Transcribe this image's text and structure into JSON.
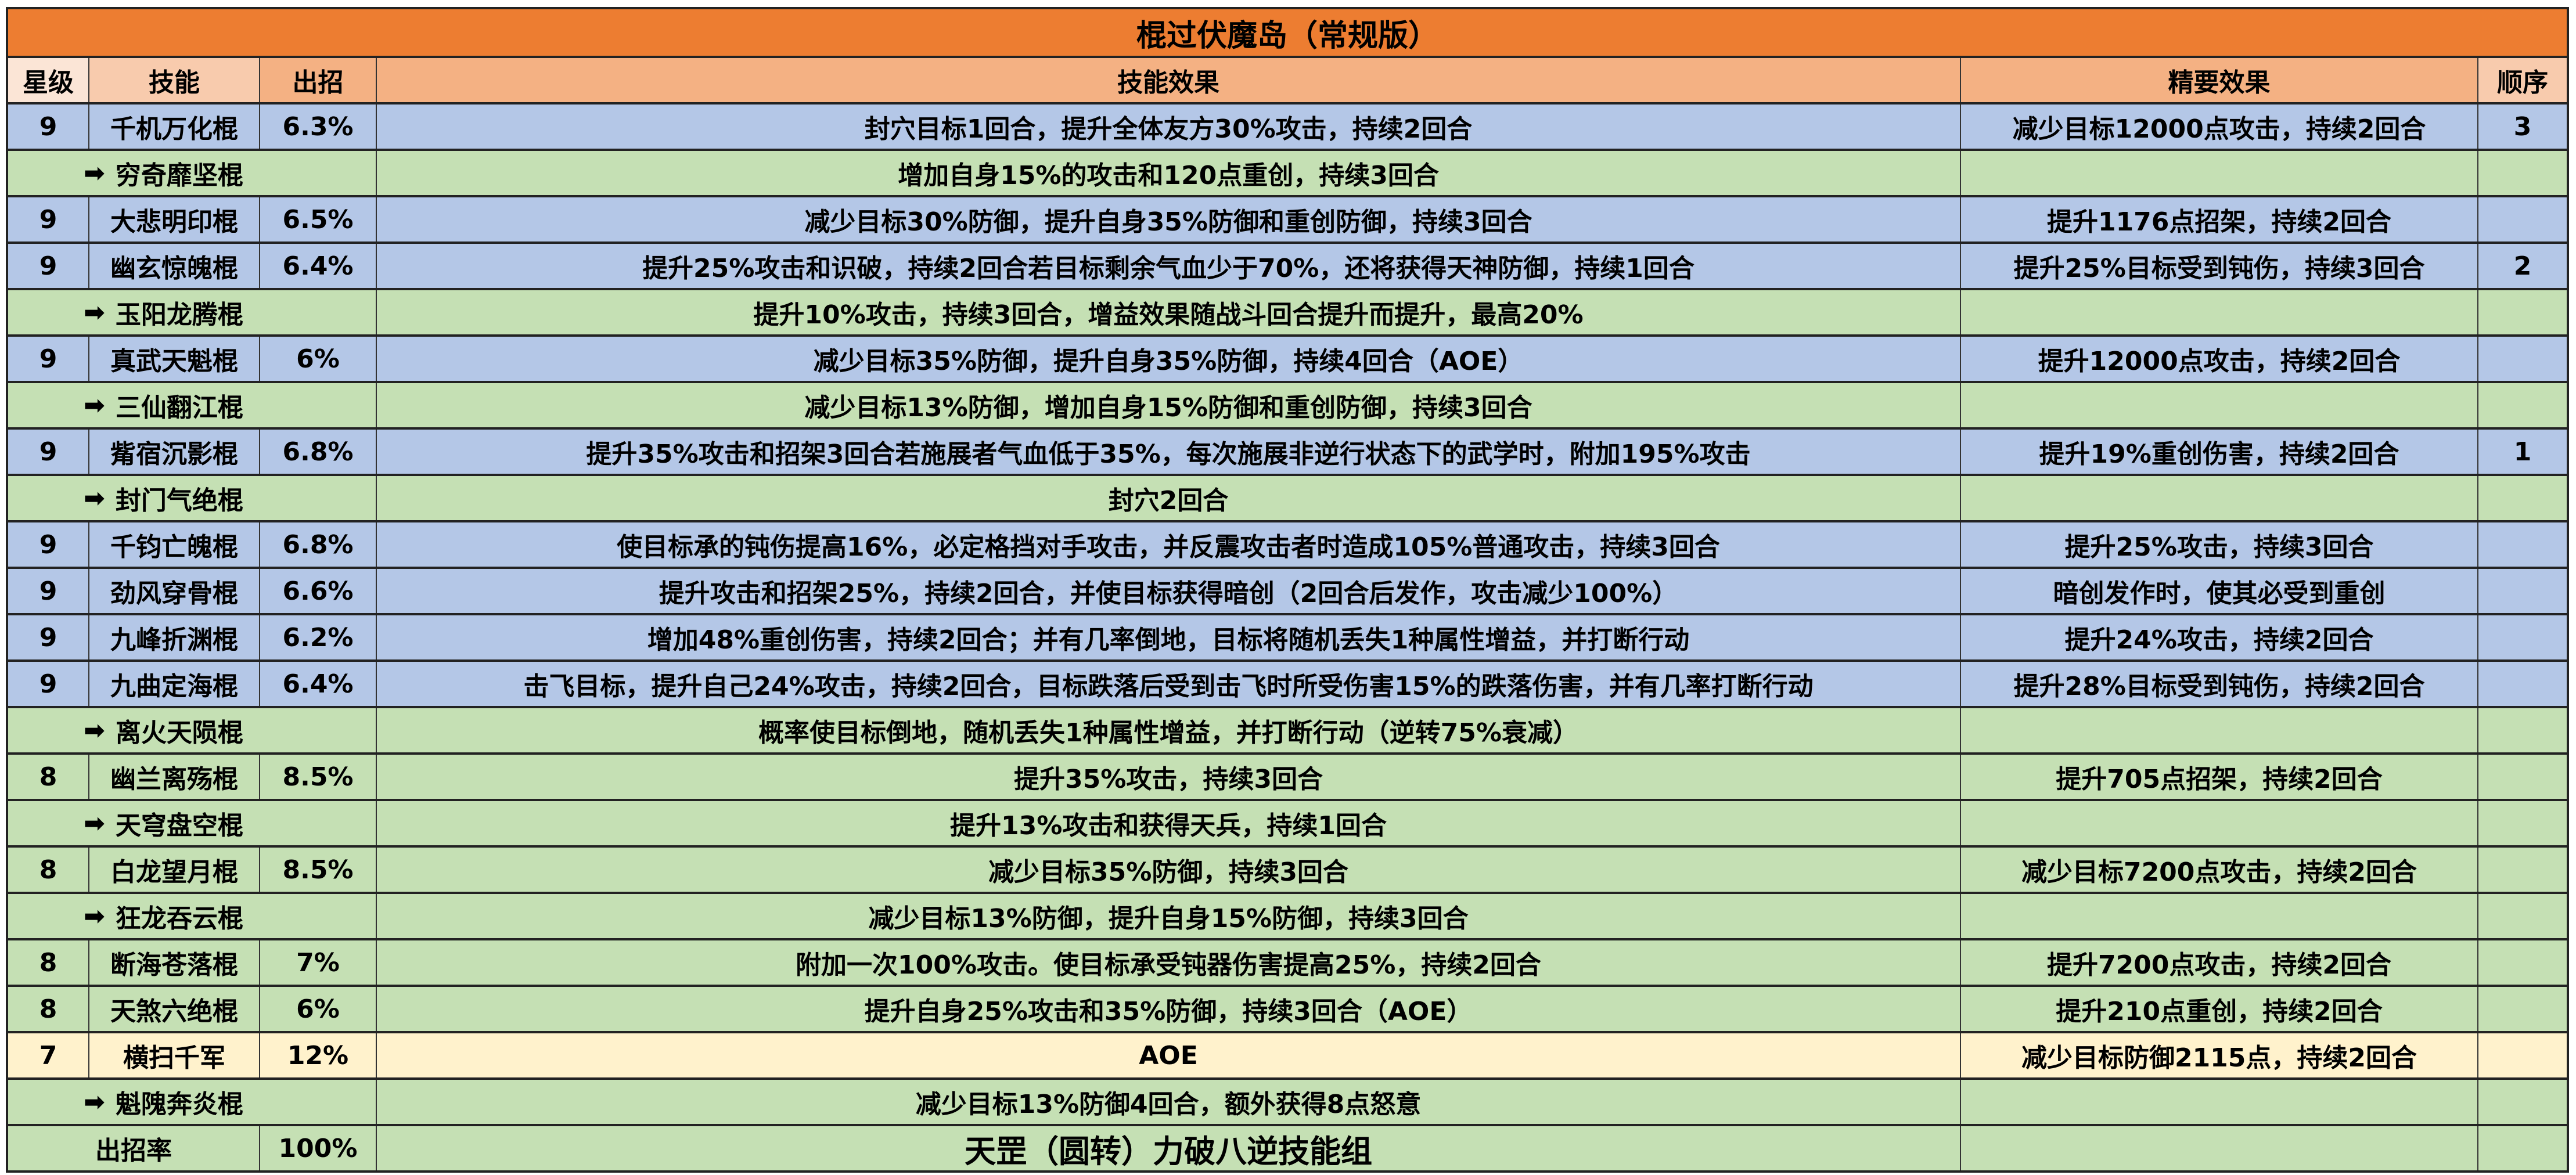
{
  "title": "棍过伏魔岛（常规版）",
  "headers": [
    "星级",
    "技能",
    "出招",
    "技能效果",
    "精要效果",
    "顺序"
  ],
  "colors": {
    "title": "#ED7D31",
    "header": "#F4B183",
    "main_row": "#B4C7E7",
    "sub_row": "#C5E0B4",
    "highlight_row": "#FFF2CC"
  },
  "arrow_icon": "right-arrow",
  "rows": [
    {
      "type": "blue",
      "star": "9",
      "skill": "千机万化棍",
      "rate": "6.3%",
      "effect": "封穴目标1回合，提升全体友方30%攻击，持续2回合",
      "essence": "减少目标12000点攻击，持续2回合",
      "order": "3"
    },
    {
      "type": "sub",
      "skill": "穷奇靡坚棍",
      "effect": "增加自身15%的攻击和120点重创，持续3回合"
    },
    {
      "type": "blue",
      "star": "9",
      "skill": "大悲明印棍",
      "rate": "6.5%",
      "effect": "减少目标30%防御，提升自身35%防御和重创防御，持续3回合",
      "essence": "提升1176点招架，持续2回合",
      "order": ""
    },
    {
      "type": "blue",
      "star": "9",
      "skill": "幽玄惊魄棍",
      "rate": "6.4%",
      "effect": "提升25%攻击和识破，持续2回合若目标剩余气血少于70%，还将获得天神防御，持续1回合",
      "essence": "提升25%目标受到钝伤，持续3回合",
      "order": "2"
    },
    {
      "type": "sub",
      "skill": "玉阳龙腾棍",
      "effect": "提升10%攻击，持续3回合，增益效果随战斗回合提升而提升，最高20%"
    },
    {
      "type": "blue",
      "star": "9",
      "skill": "真武天魁棍",
      "rate": "6%",
      "effect": "减少目标35%防御，提升自身35%防御，持续4回合（AOE）",
      "essence": "提升12000点攻击，持续2回合",
      "order": ""
    },
    {
      "type": "sub",
      "skill": "三仙翻江棍",
      "effect": "减少目标13%防御，增加自身15%防御和重创防御，持续3回合"
    },
    {
      "type": "blue",
      "star": "9",
      "skill": "觜宿沉影棍",
      "rate": "6.8%",
      "effect": "提升35%攻击和招架3回合若施展者气血低于35%，每次施展非逆行状态下的武学时，附加195%攻击",
      "essence": "提升19%重创伤害，持续2回合",
      "order": "1"
    },
    {
      "type": "sub",
      "skill": "封门气绝棍",
      "effect": "封穴2回合"
    },
    {
      "type": "blue",
      "star": "9",
      "skill": "千钧亡魄棍",
      "rate": "6.8%",
      "effect": "使目标承的钝伤提高16%，必定格挡对手攻击，并反震攻击者时造成105%普通攻击，持续3回合",
      "essence": "提升25%攻击，持续3回合",
      "order": ""
    },
    {
      "type": "blue",
      "star": "9",
      "skill": "劲风穿骨棍",
      "rate": "6.6%",
      "effect": "提升攻击和招架25%，持续2回合，并使目标获得暗创（2回合后发作，攻击减少100%）",
      "essence": "暗创发作时，使其必受到重创",
      "order": ""
    },
    {
      "type": "blue",
      "star": "9",
      "skill": "九峰折渊棍",
      "rate": "6.2%",
      "effect": "增加48%重创伤害，持续2回合；并有几率倒地，目标将随机丢失1种属性增益，并打断行动",
      "essence": "提升24%攻击，持续2回合",
      "order": ""
    },
    {
      "type": "blue",
      "star": "9",
      "skill": "九曲定海棍",
      "rate": "6.4%",
      "effect": "击飞目标，提升自己24%攻击，持续2回合，目标跌落后受到击飞时所受伤害15%的跌落伤害，并有几率打断行动",
      "essence": "提升28%目标受到钝伤，持续2回合",
      "order": ""
    },
    {
      "type": "sub",
      "skill": "离火天陨棍",
      "effect": "概率使目标倒地，随机丢失1种属性增益，并打断行动（逆转75%衰减）"
    },
    {
      "type": "green",
      "star": "8",
      "skill": "幽兰离殇棍",
      "rate": "8.5%",
      "effect": "提升35%攻击，持续3回合",
      "essence": "提升705点招架，持续2回合",
      "order": ""
    },
    {
      "type": "sub",
      "skill": "天穹盘空棍",
      "effect": "提升13%攻击和获得天兵，持续1回合"
    },
    {
      "type": "green",
      "star": "8",
      "skill": "白龙望月棍",
      "rate": "8.5%",
      "effect": "减少目标35%防御，持续3回合",
      "essence": "减少目标7200点攻击，持续2回合",
      "order": ""
    },
    {
      "type": "sub",
      "skill": "狂龙吞云棍",
      "effect": "减少目标13%防御，提升自身15%防御，持续3回合"
    },
    {
      "type": "green",
      "star": "8",
      "skill": "断海苍落棍",
      "rate": "7%",
      "effect": "附加一次100%攻击。使目标承受钝器伤害提高25%，持续2回合",
      "essence": "提升7200点攻击，持续2回合",
      "order": ""
    },
    {
      "type": "green",
      "star": "8",
      "skill": "天煞六绝棍",
      "rate": "6%",
      "effect": "提升自身25%攻击和35%防御，持续3回合（AOE）",
      "essence": "提升210点重创，持续2回合",
      "order": ""
    },
    {
      "type": "yellow",
      "star": "7",
      "skill": "横扫千军",
      "rate": "12%",
      "effect": "AOE",
      "essence": "减少目标防御2115点，持续2回合",
      "order": ""
    },
    {
      "type": "sub",
      "skill": "魁隗奔炎棍",
      "effect": "减少目标13%防御4回合，额外获得8点怒意"
    }
  ],
  "footer": {
    "label": "出招率",
    "rate": "100%",
    "group": "天罡（圆转）力破八逆技能组"
  }
}
